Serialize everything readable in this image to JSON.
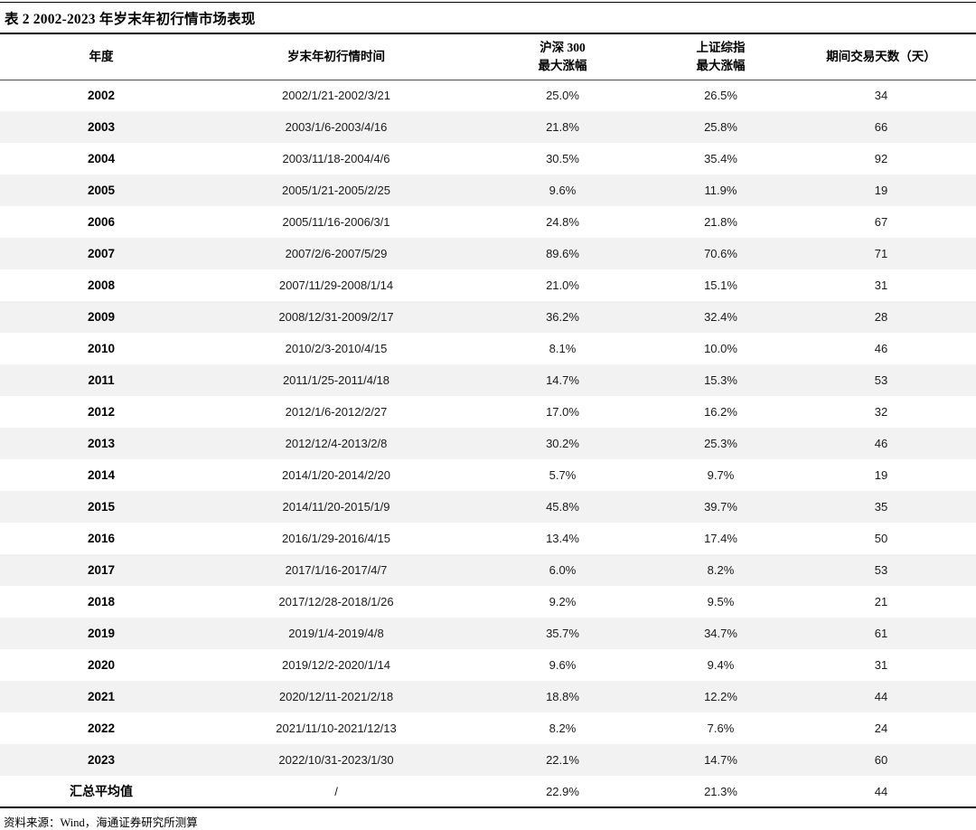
{
  "title": "表 2 2002-2023 年岁末年初行情市场表现",
  "source": {
    "text": "资料来源：Wind，海通证券研究所测算"
  },
  "colors": {
    "stripe": "#f2f2f2",
    "rule_heavy": "#000000",
    "rule_light": "#4d4d4d",
    "text": "#111111"
  },
  "table": {
    "columns": [
      {
        "label": "年度"
      },
      {
        "label": "岁末年初行情时间"
      },
      {
        "label": "沪深 300",
        "label2": "最大涨幅"
      },
      {
        "label": "上证综指",
        "label2": "最大涨幅"
      },
      {
        "label": "期间交易天数（天）"
      }
    ],
    "rows": [
      {
        "year": "2002",
        "period": "2002/1/21-2002/3/21",
        "hs300": "25.0%",
        "szzz": "26.5%",
        "days": "34"
      },
      {
        "year": "2003",
        "period": "2003/1/6-2003/4/16",
        "hs300": "21.8%",
        "szzz": "25.8%",
        "days": "66"
      },
      {
        "year": "2004",
        "period": "2003/11/18-2004/4/6",
        "hs300": "30.5%",
        "szzz": "35.4%",
        "days": "92"
      },
      {
        "year": "2005",
        "period": "2005/1/21-2005/2/25",
        "hs300": "9.6%",
        "szzz": "11.9%",
        "days": "19"
      },
      {
        "year": "2006",
        "period": "2005/11/16-2006/3/1",
        "hs300": "24.8%",
        "szzz": "21.8%",
        "days": "67"
      },
      {
        "year": "2007",
        "period": "2007/2/6-2007/5/29",
        "hs300": "89.6%",
        "szzz": "70.6%",
        "days": "71"
      },
      {
        "year": "2008",
        "period": "2007/11/29-2008/1/14",
        "hs300": "21.0%",
        "szzz": "15.1%",
        "days": "31"
      },
      {
        "year": "2009",
        "period": "2008/12/31-2009/2/17",
        "hs300": "36.2%",
        "szzz": "32.4%",
        "days": "28"
      },
      {
        "year": "2010",
        "period": "2010/2/3-2010/4/15",
        "hs300": "8.1%",
        "szzz": "10.0%",
        "days": "46"
      },
      {
        "year": "2011",
        "period": "2011/1/25-2011/4/18",
        "hs300": "14.7%",
        "szzz": "15.3%",
        "days": "53"
      },
      {
        "year": "2012",
        "period": "2012/1/6-2012/2/27",
        "hs300": "17.0%",
        "szzz": "16.2%",
        "days": "32"
      },
      {
        "year": "2013",
        "period": "2012/12/4-2013/2/8",
        "hs300": "30.2%",
        "szzz": "25.3%",
        "days": "46"
      },
      {
        "year": "2014",
        "period": "2014/1/20-2014/2/20",
        "hs300": "5.7%",
        "szzz": "9.7%",
        "days": "19"
      },
      {
        "year": "2015",
        "period": "2014/11/20-2015/1/9",
        "hs300": "45.8%",
        "szzz": "39.7%",
        "days": "35"
      },
      {
        "year": "2016",
        "period": "2016/1/29-2016/4/15",
        "hs300": "13.4%",
        "szzz": "17.4%",
        "days": "50"
      },
      {
        "year": "2017",
        "period": "2017/1/16-2017/4/7",
        "hs300": "6.0%",
        "szzz": "8.2%",
        "days": "53"
      },
      {
        "year": "2018",
        "period": "2017/12/28-2018/1/26",
        "hs300": "9.2%",
        "szzz": "9.5%",
        "days": "21"
      },
      {
        "year": "2019",
        "period": "2019/1/4-2019/4/8",
        "hs300": "35.7%",
        "szzz": "34.7%",
        "days": "61"
      },
      {
        "year": "2020",
        "period": "2019/12/2-2020/1/14",
        "hs300": "9.6%",
        "szzz": "9.4%",
        "days": "31"
      },
      {
        "year": "2021",
        "period": "2020/12/11-2021/2/18",
        "hs300": "18.8%",
        "szzz": "12.2%",
        "days": "44"
      },
      {
        "year": "2022",
        "period": "2021/11/10-2021/12/13",
        "hs300": "8.2%",
        "szzz": "7.6%",
        "days": "24"
      },
      {
        "year": "2023",
        "period": "2022/10/31-2023/1/30",
        "hs300": "22.1%",
        "szzz": "14.7%",
        "days": "60"
      },
      {
        "year": "汇总平均值",
        "period": "/",
        "hs300": "22.9%",
        "szzz": "21.3%",
        "days": "44"
      }
    ]
  }
}
